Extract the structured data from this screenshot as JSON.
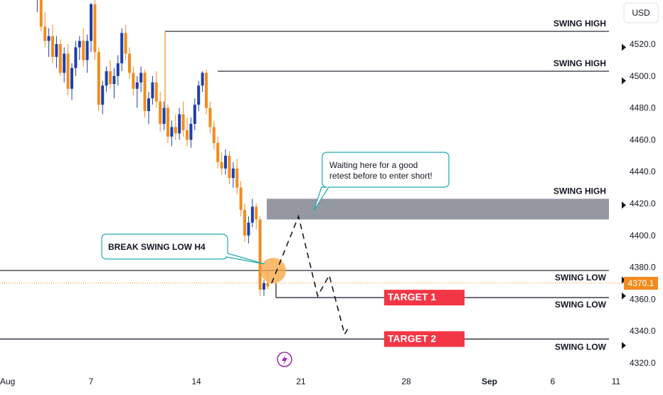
{
  "header": {
    "currency": "USD"
  },
  "colors": {
    "bull": "#1e3fa8",
    "bear": "#f28b1e",
    "zone": "#9598a1",
    "target": "#f23645",
    "callout_border": "#22a8b0",
    "price_tag": "#f28b1e",
    "break_circle": "#f7a63d",
    "bolt": "#9c27b0"
  },
  "chart_data": {
    "type": "candlestick",
    "ylim": [
      4315,
      4552
    ],
    "y_ticks": [
      "4520.0",
      "4500.0",
      "4480.0",
      "4460.0",
      "4440.0",
      "4420.0",
      "4400.0",
      "4380.0",
      "4360.0",
      "4340.0",
      "4320.0"
    ],
    "x_ticks": [
      "Aug",
      "7",
      "14",
      "21",
      "28",
      "Sep",
      "6",
      "11"
    ],
    "current_price": "4370.1",
    "levels": [
      {
        "label": "SWING HIGH",
        "price": 4528
      },
      {
        "label": "SWING HIGH",
        "price": 4503
      },
      {
        "label": "SWING LOW",
        "price": 4378
      },
      {
        "label": "SWING LOW",
        "price": 4361
      },
      {
        "label": "SWING LOW",
        "price": 4335
      }
    ],
    "zone": {
      "label": "SWING HIGH",
      "price_top": 4423,
      "price_bottom": 4410
    },
    "targets": [
      {
        "label": "TARGET 1",
        "price": 4361
      },
      {
        "label": "TARGET 2",
        "price": 4335
      }
    ],
    "annotations": [
      "BREAK SWING LOW H4",
      "Waiting here for a good retest before to enter short!"
    ],
    "candles": [
      [
        4560,
        4572,
        4548,
        4549
      ],
      [
        4549,
        4556,
        4540,
        4551
      ],
      [
        4551,
        4553,
        4528,
        4531
      ],
      [
        4531,
        4540,
        4518,
        4522
      ],
      [
        4522,
        4530,
        4512,
        4525
      ],
      [
        4525,
        4532,
        4508,
        4512
      ],
      [
        4512,
        4525,
        4505,
        4520
      ],
      [
        4520,
        4523,
        4500,
        4502
      ],
      [
        4502,
        4518,
        4496,
        4514
      ],
      [
        4514,
        4520,
        4488,
        4492
      ],
      [
        4492,
        4508,
        4485,
        4505
      ],
      [
        4505,
        4522,
        4500,
        4518
      ],
      [
        4518,
        4525,
        4510,
        4522
      ],
      [
        4522,
        4530,
        4506,
        4510
      ],
      [
        4510,
        4526,
        4502,
        4522
      ],
      [
        4522,
        4546,
        4515,
        4545
      ],
      [
        4545,
        4548,
        4510,
        4515
      ],
      [
        4515,
        4518,
        4478,
        4482
      ],
      [
        4482,
        4497,
        4476,
        4494
      ],
      [
        4494,
        4506,
        4490,
        4503
      ],
      [
        4503,
        4510,
        4492,
        4495
      ],
      [
        4495,
        4505,
        4486,
        4500
      ],
      [
        4500,
        4513,
        4494,
        4508
      ],
      [
        4508,
        4530,
        4503,
        4527
      ],
      [
        4527,
        4532,
        4510,
        4514
      ],
      [
        4514,
        4518,
        4498,
        4502
      ],
      [
        4502,
        4506,
        4488,
        4492
      ],
      [
        4492,
        4500,
        4480,
        4496
      ],
      [
        4496,
        4506,
        4490,
        4502
      ],
      [
        4502,
        4504,
        4474,
        4478
      ],
      [
        4478,
        4490,
        4470,
        4486
      ],
      [
        4486,
        4500,
        4482,
        4496
      ],
      [
        4496,
        4503,
        4480,
        4484
      ],
      [
        4484,
        4490,
        4465,
        4470
      ],
      [
        4470,
        4484,
        4466,
        4480
      ],
      [
        4480,
        4482,
        4458,
        4462
      ],
      [
        4462,
        4472,
        4456,
        4468
      ],
      [
        4468,
        4476,
        4460,
        4464
      ],
      [
        4464,
        4480,
        4460,
        4476
      ],
      [
        4476,
        4484,
        4462,
        4466
      ],
      [
        4466,
        4474,
        4456,
        4460
      ],
      [
        4460,
        4474,
        4455,
        4470
      ],
      [
        4470,
        4486,
        4466,
        4482
      ],
      [
        4482,
        4497,
        4478,
        4494
      ],
      [
        4494,
        4503,
        4490,
        4502
      ],
      [
        4502,
        4504,
        4476,
        4480
      ],
      [
        4480,
        4484,
        4464,
        4468
      ],
      [
        4468,
        4472,
        4454,
        4458
      ],
      [
        4458,
        4462,
        4442,
        4446
      ],
      [
        4446,
        4452,
        4438,
        4442
      ],
      [
        4442,
        4454,
        4438,
        4450
      ],
      [
        4450,
        4453,
        4432,
        4436
      ],
      [
        4436,
        4446,
        4430,
        4442
      ],
      [
        4442,
        4448,
        4426,
        4430
      ],
      [
        4430,
        4434,
        4412,
        4416
      ],
      [
        4416,
        4420,
        4396,
        4400
      ],
      [
        4400,
        4412,
        4395,
        4408
      ],
      [
        4408,
        4423,
        4405,
        4418
      ],
      [
        4418,
        4420,
        4404,
        4410
      ],
      [
        4410,
        4412,
        4362,
        4366
      ],
      [
        4366,
        4372,
        4362,
        4370
      ],
      [
        4370,
        4377,
        4366,
        4368
      ]
    ],
    "forecast_path": [
      {
        "bar": 62,
        "price": 4370
      },
      {
        "bar": 69,
        "price": 4412
      },
      {
        "bar": 74,
        "price": 4362
      },
      {
        "bar": 77,
        "price": 4375
      },
      {
        "bar": 81,
        "price": 4338
      },
      {
        "bar": 82,
        "price": 4342
      }
    ]
  }
}
